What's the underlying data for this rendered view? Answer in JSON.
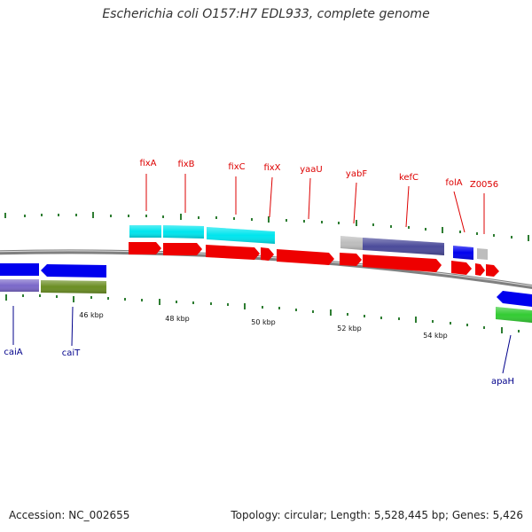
{
  "title": "Escherichia coli O157:H7 EDL933, complete genome",
  "footer": {
    "accession": "Accession: NC_002655",
    "summary": "Topology: circular; Length: 5,528,445 bp; Genes: 5,426"
  },
  "colors": {
    "forward_label": "#dd0000",
    "reverse_label": "#00008b",
    "backbone": "#808080",
    "tick": "#006400"
  },
  "scale": {
    "labels": [
      "46 kbp",
      "48 kbp",
      "50 kbp",
      "52 kbp",
      "54 kbp"
    ]
  },
  "gene_labels": {
    "forward": [
      "fixA",
      "fixB",
      "fixC",
      "fixX",
      "yaaU",
      "yabF",
      "kefC",
      "folA",
      "Z0056"
    ],
    "reverse": [
      "caiA",
      "caiT",
      "apaH"
    ]
  }
}
